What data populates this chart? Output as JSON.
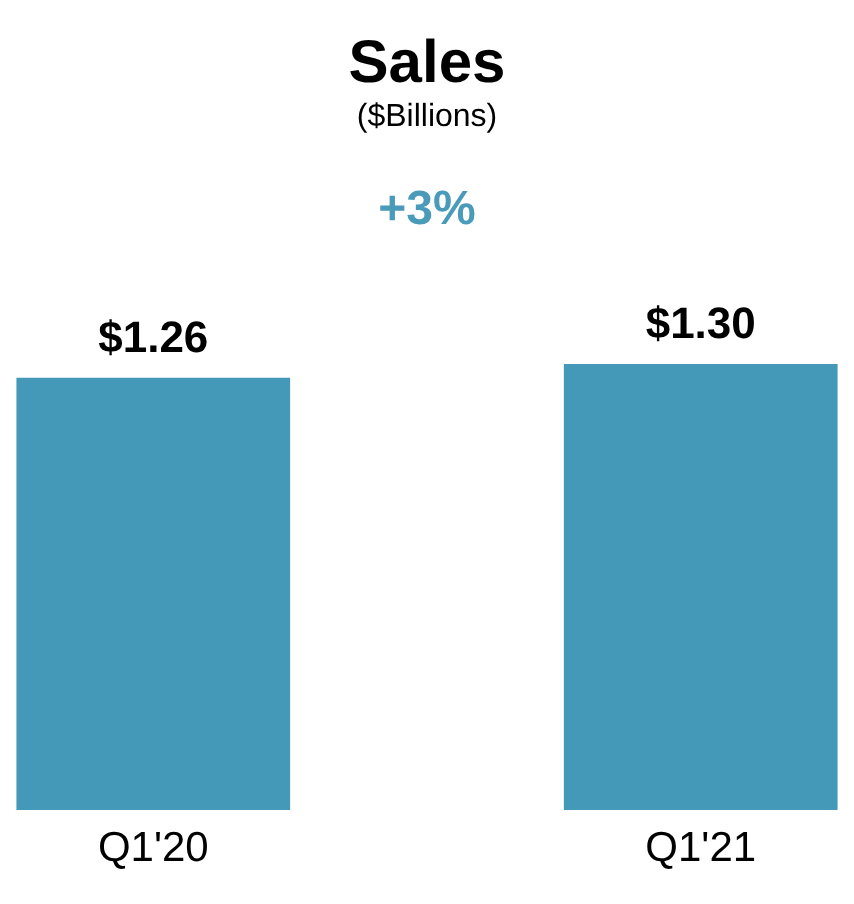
{
  "chart_data": {
    "type": "bar",
    "title": "Sales",
    "subtitle": "($Billions)",
    "categories": [
      "Q1'20",
      "Q1'21"
    ],
    "values": [
      1.26,
      1.3
    ],
    "value_labels": [
      "$1.26",
      "$1.30"
    ],
    "color": "#4499b8",
    "annotations": [
      "+3%"
    ],
    "grid": false
  }
}
